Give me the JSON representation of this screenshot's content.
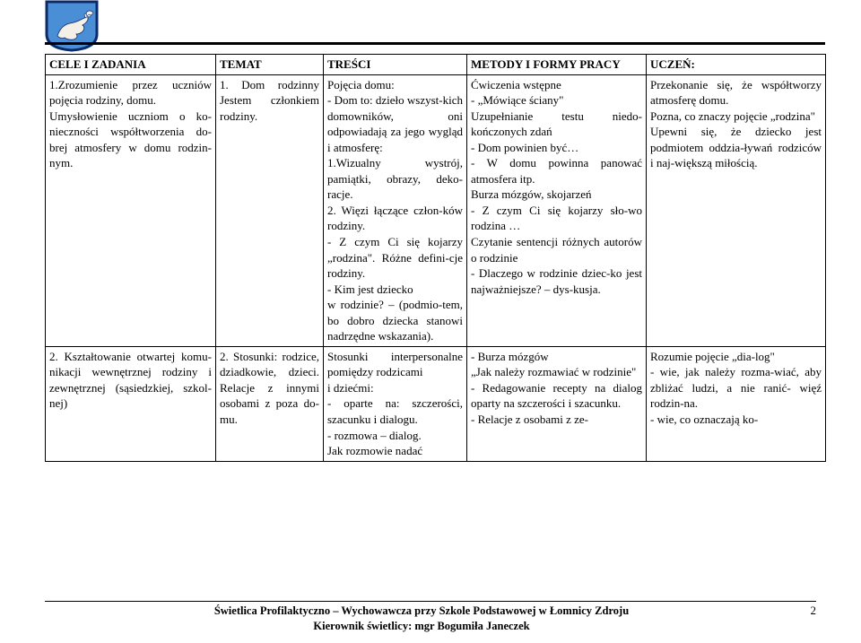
{
  "logo": {
    "border_color": "#0b2a6b",
    "bg_color": "#4a8fd6",
    "animal_color": "#f4f0e8"
  },
  "table": {
    "headers": {
      "c1": "CELE I ZADANIA",
      "c2": "TEMAT",
      "c3": "TREŚCI",
      "c4": "METODY I FORMY PRACY",
      "c5": "UCZEŃ:"
    },
    "row1": {
      "c1": "1.Zrozumienie przez uczniów pojęcia rodziny, domu.\nUmysłowienie uczniom o ko-nieczności współtworzenia do-brej atmosfery w domu rodzin-nym.",
      "c2": "1. Dom rodzinny Jestem członkiem rodziny.",
      "c3": "Pojęcia domu:\n- Dom to: dzieło wszyst-kich domowników, oni odpowiadają za jego wygląd i atmosferę:\n1.Wizualny wystrój, pamiątki, obrazy, deko-racje.\n2. Więzi łączące człon-ków rodziny.\n- Z czym Ci się kojarzy „rodzina\". Różne defini-cje rodziny.\n- Kim jest dziecko\nw rodzinie? – (podmio-tem, bo dobro dziecka stanowi nadrzędne wskazania).",
      "c4": "Ćwiczenia wstępne\n- „Mówiące ściany\"\nUzupełnianie testu niedo-kończonych zdań\n- Dom powinien być…\n- W domu powinna panować atmosfera itp.\nBurza mózgów, skojarzeń\n- Z czym Ci się kojarzy sło-wo rodzina …\nCzytanie sentencji różnych autorów o rodzinie\n- Dlaczego w rodzinie dziec-ko jest najważniejsze? – dys-kusja.",
      "c5": "Przekonanie się, że współtworzy atmosferę domu.\nPozna, co znaczy pojęcie „rodzina\"\nUpewni się, że dziecko jest podmiotem oddzia-ływań rodziców i naj-większą miłością."
    },
    "row2": {
      "c1": "2. Kształtowanie otwartej komu-nikacji wewnętrznej rodziny i zewnętrznej (sąsiedzkiej, szkol-nej)",
      "c2": "2. Stosunki: rodzice, dziadkowie, dzieci. Relacje z innymi osobami z poza do-mu.",
      "c3": "Stosunki interpersonalne pomiędzy rodzicami\ni dziećmi:\n- oparte na: szczerości, szacunku i dialogu.\n- rozmowa – dialog.\nJak rozmowie nadać",
      "c4": "- Burza mózgów\n„Jak należy rozmawiać w rodzinie\"\n- Redagowanie recepty na dialog oparty na szczerości i szacunku.\n- Relacje z osobami z ze-",
      "c5": "Rozumie pojęcie „dia-log\"\n- wie, jak należy rozma-wiać, aby zbliżać ludzi, a nie ranić- więź rodzin-na.\n- wie, co oznaczają ko-"
    }
  },
  "footer": {
    "line1": "Świetlica Profilaktyczno – Wychowawcza przy Szkole Podstawowej  w Łomnicy Zdroju",
    "line2": "Kierownik świetlicy: mgr Bogumiła  Janeczek",
    "page_number": "2"
  }
}
